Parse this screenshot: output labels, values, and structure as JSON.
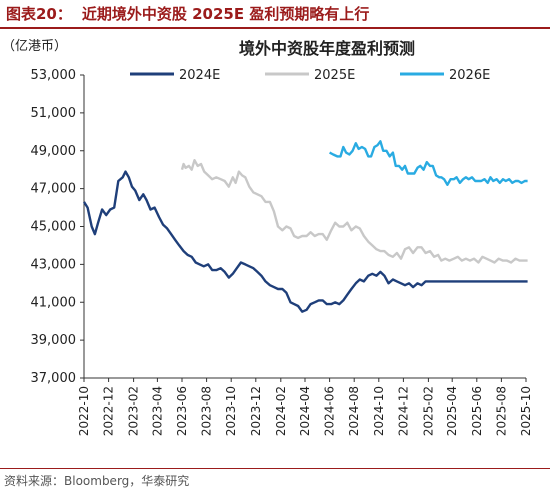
{
  "figure": {
    "label": "图表20：",
    "title": "近期境外中资股 2025E 盈利预期略有上行",
    "source": "资料来源：Bloomberg，华泰研究"
  },
  "chart_data": {
    "type": "line",
    "title": "境外中资股年度盈利预测",
    "unit_label": "（亿港币）",
    "ylim": [
      37000,
      53000
    ],
    "yticks": [
      37000,
      39000,
      41000,
      43000,
      45000,
      47000,
      49000,
      51000,
      53000
    ],
    "ytick_labels": [
      "37,000",
      "39,000",
      "41,000",
      "43,000",
      "45,000",
      "47,000",
      "49,000",
      "51,000",
      "53,000"
    ],
    "xlim": [
      "2022-10",
      "2025-10"
    ],
    "xtick_labels": [
      "2022-10",
      "2022-12",
      "2023-02",
      "2023-04",
      "2023-06",
      "2023-08",
      "2023-10",
      "2023-12",
      "2024-02",
      "2024-04",
      "2024-06",
      "2024-08",
      "2024-10",
      "2024-12",
      "2025-02",
      "2025-04",
      "2025-06",
      "2025-08",
      "2025-10"
    ],
    "legend_position": "top",
    "grid": false,
    "series": [
      {
        "name": "2024E",
        "color": "#1f3f7a",
        "points": [
          [
            "2022-10-01",
            46300
          ],
          [
            "2022-10-10",
            46000
          ],
          [
            "2022-10-20",
            45000
          ],
          [
            "2022-10-28",
            44600
          ],
          [
            "2022-11-05",
            45200
          ],
          [
            "2022-11-15",
            45900
          ],
          [
            "2022-11-25",
            45600
          ],
          [
            "2022-12-05",
            45900
          ],
          [
            "2022-12-15",
            46000
          ],
          [
            "2022-12-25",
            47400
          ],
          [
            "2023-01-05",
            47600
          ],
          [
            "2023-01-12",
            47900
          ],
          [
            "2023-01-20",
            47600
          ],
          [
            "2023-01-28",
            47100
          ],
          [
            "2023-02-05",
            46900
          ],
          [
            "2023-02-15",
            46400
          ],
          [
            "2023-02-25",
            46700
          ],
          [
            "2023-03-05",
            46400
          ],
          [
            "2023-03-15",
            45900
          ],
          [
            "2023-03-25",
            46000
          ],
          [
            "2023-04-05",
            45500
          ],
          [
            "2023-04-15",
            45100
          ],
          [
            "2023-04-25",
            44900
          ],
          [
            "2023-05-05",
            44600
          ],
          [
            "2023-05-15",
            44300
          ],
          [
            "2023-05-25",
            44000
          ],
          [
            "2023-06-05",
            43700
          ],
          [
            "2023-06-15",
            43500
          ],
          [
            "2023-06-25",
            43400
          ],
          [
            "2023-07-05",
            43100
          ],
          [
            "2023-07-15",
            43000
          ],
          [
            "2023-07-25",
            42900
          ],
          [
            "2023-08-05",
            43000
          ],
          [
            "2023-08-15",
            42700
          ],
          [
            "2023-08-25",
            42700
          ],
          [
            "2023-09-05",
            42800
          ],
          [
            "2023-09-15",
            42600
          ],
          [
            "2023-09-25",
            42300
          ],
          [
            "2023-10-05",
            42500
          ],
          [
            "2023-10-15",
            42800
          ],
          [
            "2023-10-25",
            43100
          ],
          [
            "2023-11-05",
            43000
          ],
          [
            "2023-11-15",
            42900
          ],
          [
            "2023-11-25",
            42800
          ],
          [
            "2023-12-05",
            42600
          ],
          [
            "2023-12-15",
            42400
          ],
          [
            "2023-12-25",
            42100
          ],
          [
            "2024-01-05",
            41900
          ],
          [
            "2024-01-15",
            41800
          ],
          [
            "2024-01-25",
            41700
          ],
          [
            "2024-02-05",
            41700
          ],
          [
            "2024-02-15",
            41500
          ],
          [
            "2024-02-25",
            41000
          ],
          [
            "2024-03-05",
            40900
          ],
          [
            "2024-03-15",
            40800
          ],
          [
            "2024-03-25",
            40500
          ],
          [
            "2024-04-05",
            40600
          ],
          [
            "2024-04-15",
            40900
          ],
          [
            "2024-04-25",
            41000
          ],
          [
            "2024-05-05",
            41100
          ],
          [
            "2024-05-15",
            41100
          ],
          [
            "2024-05-25",
            40900
          ],
          [
            "2024-06-05",
            40900
          ],
          [
            "2024-06-15",
            41000
          ],
          [
            "2024-06-25",
            40900
          ],
          [
            "2024-07-05",
            41100
          ],
          [
            "2024-07-15",
            41400
          ],
          [
            "2024-07-25",
            41700
          ],
          [
            "2024-08-05",
            42000
          ],
          [
            "2024-08-15",
            42200
          ],
          [
            "2024-08-25",
            42100
          ],
          [
            "2024-09-05",
            42400
          ],
          [
            "2024-09-15",
            42500
          ],
          [
            "2024-09-25",
            42400
          ],
          [
            "2024-10-05",
            42600
          ],
          [
            "2024-10-15",
            42400
          ],
          [
            "2024-10-25",
            42000
          ],
          [
            "2024-11-05",
            42200
          ],
          [
            "2024-11-15",
            42100
          ],
          [
            "2024-11-25",
            42000
          ],
          [
            "2024-12-05",
            41900
          ],
          [
            "2024-12-15",
            42000
          ],
          [
            "2024-12-25",
            41800
          ],
          [
            "2025-01-05",
            42000
          ],
          [
            "2025-01-15",
            41900
          ],
          [
            "2025-01-25",
            42100
          ],
          [
            "2025-02-05",
            42100
          ],
          [
            "2025-02-15",
            42100
          ],
          [
            "2025-03-05",
            42100
          ],
          [
            "2025-04-05",
            42100
          ],
          [
            "2025-05-05",
            42100
          ],
          [
            "2025-06-05",
            42100
          ],
          [
            "2025-07-05",
            42100
          ],
          [
            "2025-08-05",
            42100
          ],
          [
            "2025-09-05",
            42100
          ],
          [
            "2025-10-05",
            42100
          ]
        ]
      },
      {
        "name": "2025E",
        "color": "#c8c8c8",
        "points": [
          [
            "2023-06-01",
            48000
          ],
          [
            "2023-06-05",
            48300
          ],
          [
            "2023-06-10",
            48100
          ],
          [
            "2023-06-18",
            48200
          ],
          [
            "2023-06-25",
            48000
          ],
          [
            "2023-07-02",
            48500
          ],
          [
            "2023-07-10",
            48200
          ],
          [
            "2023-07-18",
            48300
          ],
          [
            "2023-07-26",
            47900
          ],
          [
            "2023-08-05",
            47700
          ],
          [
            "2023-08-15",
            47500
          ],
          [
            "2023-08-25",
            47600
          ],
          [
            "2023-09-05",
            47500
          ],
          [
            "2023-09-15",
            47400
          ],
          [
            "2023-09-25",
            47100
          ],
          [
            "2023-10-05",
            47600
          ],
          [
            "2023-10-12",
            47300
          ],
          [
            "2023-10-20",
            47900
          ],
          [
            "2023-10-28",
            47700
          ],
          [
            "2023-11-05",
            47600
          ],
          [
            "2023-11-15",
            47100
          ],
          [
            "2023-11-25",
            46800
          ],
          [
            "2023-12-05",
            46700
          ],
          [
            "2023-12-15",
            46600
          ],
          [
            "2023-12-25",
            46300
          ],
          [
            "2024-01-05",
            46300
          ],
          [
            "2024-01-15",
            45800
          ],
          [
            "2024-01-25",
            45000
          ],
          [
            "2024-02-05",
            44800
          ],
          [
            "2024-02-15",
            45000
          ],
          [
            "2024-02-25",
            44900
          ],
          [
            "2024-03-05",
            44500
          ],
          [
            "2024-03-15",
            44400
          ],
          [
            "2024-03-25",
            44500
          ],
          [
            "2024-04-05",
            44500
          ],
          [
            "2024-04-15",
            44700
          ],
          [
            "2024-04-25",
            44500
          ],
          [
            "2024-05-05",
            44600
          ],
          [
            "2024-05-15",
            44600
          ],
          [
            "2024-05-25",
            44300
          ],
          [
            "2024-06-05",
            44800
          ],
          [
            "2024-06-15",
            45200
          ],
          [
            "2024-06-25",
            45000
          ],
          [
            "2024-07-05",
            45000
          ],
          [
            "2024-07-15",
            45200
          ],
          [
            "2024-07-25",
            44800
          ],
          [
            "2024-08-05",
            45000
          ],
          [
            "2024-08-15",
            44900
          ],
          [
            "2024-08-25",
            44500
          ],
          [
            "2024-09-05",
            44200
          ],
          [
            "2024-09-15",
            44000
          ],
          [
            "2024-09-25",
            43800
          ],
          [
            "2024-10-05",
            43700
          ],
          [
            "2024-10-15",
            43700
          ],
          [
            "2024-10-25",
            43500
          ],
          [
            "2024-11-05",
            43400
          ],
          [
            "2024-11-15",
            43600
          ],
          [
            "2024-11-25",
            43300
          ],
          [
            "2024-12-05",
            43800
          ],
          [
            "2024-12-15",
            43900
          ],
          [
            "2024-12-25",
            43600
          ],
          [
            "2025-01-05",
            43900
          ],
          [
            "2025-01-15",
            43900
          ],
          [
            "2025-01-25",
            43600
          ],
          [
            "2025-02-05",
            43700
          ],
          [
            "2025-02-15",
            43400
          ],
          [
            "2025-02-25",
            43500
          ],
          [
            "2025-03-05",
            43200
          ],
          [
            "2025-03-15",
            43300
          ],
          [
            "2025-03-25",
            43200
          ],
          [
            "2025-04-05",
            43300
          ],
          [
            "2025-04-15",
            43400
          ],
          [
            "2025-04-25",
            43200
          ],
          [
            "2025-05-05",
            43300
          ],
          [
            "2025-05-15",
            43200
          ],
          [
            "2025-05-25",
            43300
          ],
          [
            "2025-06-05",
            43100
          ],
          [
            "2025-06-15",
            43400
          ],
          [
            "2025-06-25",
            43300
          ],
          [
            "2025-07-05",
            43200
          ],
          [
            "2025-07-15",
            43100
          ],
          [
            "2025-07-25",
            43300
          ],
          [
            "2025-08-05",
            43200
          ],
          [
            "2025-08-15",
            43200
          ],
          [
            "2025-08-25",
            43100
          ],
          [
            "2025-09-05",
            43300
          ],
          [
            "2025-09-15",
            43200
          ],
          [
            "2025-09-25",
            43200
          ],
          [
            "2025-10-05",
            43200
          ]
        ]
      },
      {
        "name": "2026E",
        "color": "#29abe2",
        "points": [
          [
            "2024-06-01",
            48900
          ],
          [
            "2024-06-10",
            48800
          ],
          [
            "2024-06-20",
            48700
          ],
          [
            "2024-06-28",
            48700
          ],
          [
            "2024-07-05",
            49200
          ],
          [
            "2024-07-12",
            48900
          ],
          [
            "2024-07-20",
            48800
          ],
          [
            "2024-07-28",
            49000
          ],
          [
            "2024-08-05",
            49400
          ],
          [
            "2024-08-12",
            49100
          ],
          [
            "2024-08-20",
            49200
          ],
          [
            "2024-08-28",
            49100
          ],
          [
            "2024-09-05",
            48700
          ],
          [
            "2024-09-12",
            48700
          ],
          [
            "2024-09-20",
            49200
          ],
          [
            "2024-09-28",
            49300
          ],
          [
            "2024-10-05",
            49500
          ],
          [
            "2024-10-12",
            49000
          ],
          [
            "2024-10-20",
            49000
          ],
          [
            "2024-10-28",
            48700
          ],
          [
            "2024-11-05",
            48900
          ],
          [
            "2024-11-12",
            48200
          ],
          [
            "2024-11-20",
            48200
          ],
          [
            "2024-11-28",
            48000
          ],
          [
            "2024-12-05",
            48200
          ],
          [
            "2024-12-12",
            47800
          ],
          [
            "2024-12-20",
            47800
          ],
          [
            "2024-12-28",
            47800
          ],
          [
            "2025-01-05",
            48100
          ],
          [
            "2025-01-12",
            48200
          ],
          [
            "2025-01-20",
            48000
          ],
          [
            "2025-01-28",
            48400
          ],
          [
            "2025-02-05",
            48200
          ],
          [
            "2025-02-12",
            48200
          ],
          [
            "2025-02-20",
            47700
          ],
          [
            "2025-02-28",
            47600
          ],
          [
            "2025-03-05",
            47600
          ],
          [
            "2025-03-12",
            47500
          ],
          [
            "2025-03-20",
            47200
          ],
          [
            "2025-03-28",
            47500
          ],
          [
            "2025-04-05",
            47500
          ],
          [
            "2025-04-12",
            47600
          ],
          [
            "2025-04-20",
            47300
          ],
          [
            "2025-04-28",
            47500
          ],
          [
            "2025-05-05",
            47600
          ],
          [
            "2025-05-12",
            47500
          ],
          [
            "2025-05-20",
            47600
          ],
          [
            "2025-05-28",
            47400
          ],
          [
            "2025-06-05",
            47400
          ],
          [
            "2025-06-12",
            47400
          ],
          [
            "2025-06-20",
            47500
          ],
          [
            "2025-06-28",
            47300
          ],
          [
            "2025-07-05",
            47600
          ],
          [
            "2025-07-12",
            47400
          ],
          [
            "2025-07-20",
            47500
          ],
          [
            "2025-07-28",
            47300
          ],
          [
            "2025-08-05",
            47500
          ],
          [
            "2025-08-12",
            47400
          ],
          [
            "2025-08-20",
            47500
          ],
          [
            "2025-08-28",
            47300
          ],
          [
            "2025-09-05",
            47400
          ],
          [
            "2025-09-12",
            47400
          ],
          [
            "2025-09-20",
            47300
          ],
          [
            "2025-09-28",
            47400
          ],
          [
            "2025-10-05",
            47400
          ]
        ]
      }
    ]
  }
}
